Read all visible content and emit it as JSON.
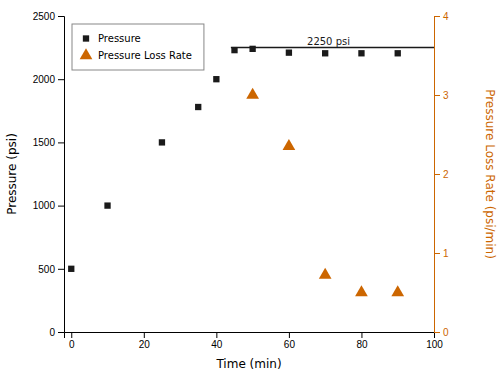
{
  "chart_data": {
    "type": "scatter",
    "xlabel": "Time (min)",
    "ylabel": "Pressure (psi)",
    "y2label": "Pressure Loss Rate (psi/min)",
    "xlim": [
      -2,
      100
    ],
    "xticks": [
      0,
      20,
      40,
      60,
      80,
      100
    ],
    "ylim": [
      0,
      2500
    ],
    "yticks": [
      0,
      500,
      1000,
      1500,
      2000,
      2500
    ],
    "y2lim": [
      0,
      4
    ],
    "y2ticks": [
      0,
      1,
      2,
      3,
      4
    ],
    "grid": false,
    "legend": "upper left",
    "series": [
      {
        "name": "Pressure",
        "color": "#1a1a1a",
        "marker": "square",
        "x": [
          0,
          10,
          25,
          35,
          40,
          45,
          50,
          60,
          70,
          80,
          90
        ],
        "values": [
          500,
          1000,
          1500,
          1780,
          2000,
          2230,
          2240,
          2210,
          2205,
          2205,
          2205
        ]
      },
      {
        "name": "Pressure Loss Rate",
        "color": "#cc6600",
        "marker": "triangle",
        "axis": "y2",
        "x": [
          50,
          60,
          70,
          80,
          90
        ],
        "values": [
          3.0,
          2.35,
          0.72,
          0.5,
          0.5
        ]
      }
    ],
    "hlines": [
      {
        "y": 2250,
        "x": [
          44,
          100
        ],
        "color": "#1a1a1a"
      }
    ],
    "annotations": [
      {
        "text": "2250 psi",
        "x": 65,
        "y": 2270,
        "color": "#1a1a1a"
      }
    ]
  }
}
